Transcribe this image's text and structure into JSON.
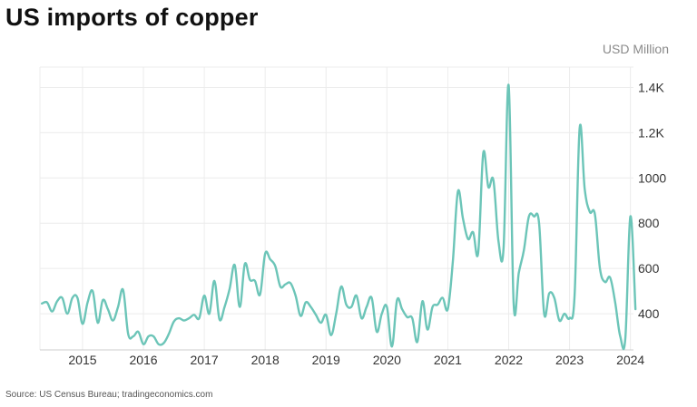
{
  "chart_data": {
    "type": "line",
    "title": "US imports of copper",
    "unit_label": "USD Million",
    "source": "Source: US Census Bureau; tradingeconomics.com",
    "line_color": "#6cc5b8",
    "grid": true,
    "xlim": [
      2014.3,
      2024.05
    ],
    "ylim": [
      240,
      1490
    ],
    "x_ticks": [
      {
        "label": "2015",
        "value": 2015
      },
      {
        "label": "2016",
        "value": 2016
      },
      {
        "label": "2017",
        "value": 2017
      },
      {
        "label": "2018",
        "value": 2018
      },
      {
        "label": "2019",
        "value": 2019
      },
      {
        "label": "2020",
        "value": 2020
      },
      {
        "label": "2021",
        "value": 2021
      },
      {
        "label": "2022",
        "value": 2022
      },
      {
        "label": "2023",
        "value": 2023
      },
      {
        "label": "2024",
        "value": 2024
      }
    ],
    "y_ticks": [
      {
        "label": "400",
        "value": 400
      },
      {
        "label": "600",
        "value": 600
      },
      {
        "label": "800",
        "value": 800
      },
      {
        "label": "1000",
        "value": 1000
      },
      {
        "label": "1.2K",
        "value": 1200
      },
      {
        "label": "1.4K",
        "value": 1400
      }
    ],
    "start": 2014.333,
    "step": 0.08333,
    "values": [
      445,
      450,
      410,
      455,
      470,
      400,
      470,
      470,
      355,
      450,
      500,
      360,
      460,
      420,
      370,
      430,
      505,
      310,
      300,
      320,
      265,
      300,
      300,
      265,
      270,
      310,
      365,
      380,
      370,
      380,
      395,
      380,
      480,
      400,
      545,
      375,
      430,
      510,
      615,
      430,
      620,
      550,
      545,
      485,
      665,
      640,
      610,
      520,
      530,
      535,
      480,
      390,
      450,
      430,
      395,
      360,
      395,
      305,
      400,
      520,
      440,
      430,
      480,
      380,
      430,
      470,
      320,
      400,
      430,
      255,
      460,
      420,
      385,
      380,
      275,
      455,
      330,
      430,
      440,
      470,
      420,
      630,
      940,
      820,
      730,
      760,
      670,
      1110,
      960,
      990,
      720,
      690,
      1410,
      440,
      580,
      680,
      830,
      830,
      800,
      400,
      490,
      470,
      370,
      400,
      380,
      480,
      1220,
      950,
      850,
      840,
      600,
      540,
      560,
      450,
      300,
      290,
      830,
      420
    ]
  }
}
